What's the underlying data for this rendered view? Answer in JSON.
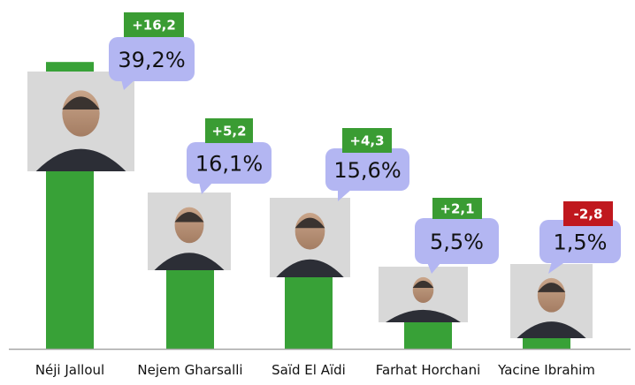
{
  "chart_data": {
    "type": "bar",
    "title": "",
    "xlabel": "",
    "ylabel": "",
    "ylim": [
      0,
      42
    ],
    "categories": [
      "Néji Jalloul",
      "Nejem Gharsalli",
      "Saïd El Aïdi",
      "Farhat Horchani",
      "Yacine Ibrahim"
    ],
    "values": [
      39.2,
      16.1,
      15.6,
      5.5,
      1.5
    ],
    "value_labels": [
      "39,2%",
      "16,1%",
      "15,6%",
      "5,5%",
      "1,5%"
    ],
    "changes": [
      16.2,
      5.2,
      4.3,
      2.1,
      -2.8
    ],
    "change_labels": [
      "+16,2",
      "+5,2",
      "+4,3",
      "+2,1",
      "-2,8"
    ],
    "portrait_icons": [
      "portrait-photo",
      "portrait-photo",
      "portrait-photo",
      "portrait-photo",
      "portrait-photo"
    ]
  },
  "colors": {
    "bar": "#38a137",
    "positive": "#3a9c33",
    "negative": "#c0181e",
    "bubble": "#b3b6f2",
    "axis": "#a6a6a6"
  }
}
